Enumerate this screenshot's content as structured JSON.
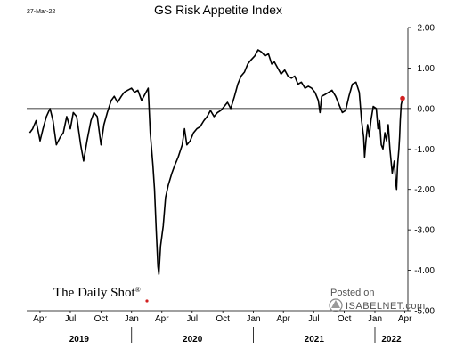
{
  "chart_data": {
    "type": "line",
    "title": "GS Risk Appetite Index",
    "date_stamp": "27-Mar-22",
    "ylim": [
      -5.0,
      2.0
    ],
    "y_ticks": [
      "2.00",
      "1.00",
      "0.00",
      "-1.00",
      "-2.00",
      "-3.00",
      "-4.00",
      "-5.00"
    ],
    "x_ticks": [
      "Apr",
      "Jul",
      "Oct",
      "Jan",
      "Apr",
      "Jul",
      "Oct",
      "Jan",
      "Apr",
      "Jul",
      "Oct",
      "Jan",
      "Apr"
    ],
    "years": [
      "2019",
      "2020",
      "2021",
      "2022"
    ],
    "grid": false,
    "reference_line": 0,
    "series": [
      {
        "color": "#000000",
        "points": [
          [
            "2019-03-01",
            -0.6
          ],
          [
            "2019-03-10",
            -0.5
          ],
          [
            "2019-03-20",
            -0.3
          ],
          [
            "2019-04-01",
            -0.8
          ],
          [
            "2019-04-10",
            -0.5
          ],
          [
            "2019-04-20",
            -0.2
          ],
          [
            "2019-05-01",
            0.0
          ],
          [
            "2019-05-10",
            -0.3
          ],
          [
            "2019-05-20",
            -0.9
          ],
          [
            "2019-06-01",
            -0.7
          ],
          [
            "2019-06-10",
            -0.6
          ],
          [
            "2019-06-20",
            -0.2
          ],
          [
            "2019-07-01",
            -0.5
          ],
          [
            "2019-07-10",
            -0.1
          ],
          [
            "2019-07-20",
            -0.2
          ],
          [
            "2019-08-01",
            -0.9
          ],
          [
            "2019-08-10",
            -1.3
          ],
          [
            "2019-08-20",
            -0.8
          ],
          [
            "2019-09-01",
            -0.3
          ],
          [
            "2019-09-10",
            -0.1
          ],
          [
            "2019-09-20",
            -0.2
          ],
          [
            "2019-10-01",
            -0.9
          ],
          [
            "2019-10-10",
            -0.4
          ],
          [
            "2019-10-20",
            -0.1
          ],
          [
            "2019-11-01",
            0.2
          ],
          [
            "2019-11-10",
            0.3
          ],
          [
            "2019-11-20",
            0.15
          ],
          [
            "2019-12-01",
            0.3
          ],
          [
            "2019-12-10",
            0.4
          ],
          [
            "2019-12-20",
            0.45
          ],
          [
            "2020-01-01",
            0.5
          ],
          [
            "2020-01-10",
            0.4
          ],
          [
            "2020-01-20",
            0.45
          ],
          [
            "2020-01-31",
            0.2
          ],
          [
            "2020-02-10",
            0.35
          ],
          [
            "2020-02-20",
            0.5
          ],
          [
            "2020-02-26",
            -0.6
          ],
          [
            "2020-03-05",
            -1.4
          ],
          [
            "2020-03-10",
            -2.0
          ],
          [
            "2020-03-15",
            -3.0
          ],
          [
            "2020-03-20",
            -3.9
          ],
          [
            "2020-03-23",
            -4.1
          ],
          [
            "2020-03-28",
            -3.4
          ],
          [
            "2020-04-05",
            -2.9
          ],
          [
            "2020-04-12",
            -2.2
          ],
          [
            "2020-04-20",
            -1.9
          ],
          [
            "2020-05-01",
            -1.6
          ],
          [
            "2020-05-10",
            -1.4
          ],
          [
            "2020-05-20",
            -1.2
          ],
          [
            "2020-06-01",
            -0.9
          ],
          [
            "2020-06-08",
            -0.5
          ],
          [
            "2020-06-15",
            -0.9
          ],
          [
            "2020-06-25",
            -0.8
          ],
          [
            "2020-07-05",
            -0.6
          ],
          [
            "2020-07-15",
            -0.5
          ],
          [
            "2020-07-25",
            -0.45
          ],
          [
            "2020-08-05",
            -0.3
          ],
          [
            "2020-08-15",
            -0.2
          ],
          [
            "2020-08-25",
            -0.05
          ],
          [
            "2020-09-05",
            -0.2
          ],
          [
            "2020-09-15",
            -0.1
          ],
          [
            "2020-09-25",
            -0.05
          ],
          [
            "2020-10-05",
            0.05
          ],
          [
            "2020-10-15",
            0.15
          ],
          [
            "2020-10-25",
            0.0
          ],
          [
            "2020-11-05",
            0.3
          ],
          [
            "2020-11-15",
            0.6
          ],
          [
            "2020-11-25",
            0.8
          ],
          [
            "2020-12-05",
            0.9
          ],
          [
            "2020-12-15",
            1.1
          ],
          [
            "2020-12-25",
            1.2
          ],
          [
            "2021-01-05",
            1.3
          ],
          [
            "2021-01-15",
            1.45
          ],
          [
            "2021-01-25",
            1.4
          ],
          [
            "2021-02-05",
            1.3
          ],
          [
            "2021-02-15",
            1.35
          ],
          [
            "2021-02-25",
            1.1
          ],
          [
            "2021-03-05",
            1.15
          ],
          [
            "2021-03-15",
            1.0
          ],
          [
            "2021-03-25",
            0.85
          ],
          [
            "2021-04-05",
            0.95
          ],
          [
            "2021-04-15",
            0.8
          ],
          [
            "2021-04-25",
            0.75
          ],
          [
            "2021-05-05",
            0.8
          ],
          [
            "2021-05-15",
            0.6
          ],
          [
            "2021-05-25",
            0.65
          ],
          [
            "2021-06-05",
            0.5
          ],
          [
            "2021-06-15",
            0.55
          ],
          [
            "2021-06-25",
            0.5
          ],
          [
            "2021-07-05",
            0.4
          ],
          [
            "2021-07-15",
            0.2
          ],
          [
            "2021-07-20",
            -0.1
          ],
          [
            "2021-07-25",
            0.3
          ],
          [
            "2021-08-05",
            0.35
          ],
          [
            "2021-08-15",
            0.4
          ],
          [
            "2021-08-25",
            0.45
          ],
          [
            "2021-09-05",
            0.3
          ],
          [
            "2021-09-15",
            0.1
          ],
          [
            "2021-09-25",
            -0.1
          ],
          [
            "2021-10-05",
            -0.05
          ],
          [
            "2021-10-15",
            0.3
          ],
          [
            "2021-10-25",
            0.6
          ],
          [
            "2021-11-05",
            0.65
          ],
          [
            "2021-11-15",
            0.4
          ],
          [
            "2021-11-22",
            -0.3
          ],
          [
            "2021-11-28",
            -0.7
          ],
          [
            "2021-12-01",
            -1.2
          ],
          [
            "2021-12-05",
            -0.8
          ],
          [
            "2021-12-10",
            -0.4
          ],
          [
            "2021-12-15",
            -0.7
          ],
          [
            "2021-12-20",
            -0.3
          ],
          [
            "2021-12-27",
            0.05
          ],
          [
            "2022-01-05",
            0.0
          ],
          [
            "2022-01-10",
            -0.5
          ],
          [
            "2022-01-15",
            -0.3
          ],
          [
            "2022-01-20",
            -0.9
          ],
          [
            "2022-01-25",
            -1.0
          ],
          [
            "2022-01-31",
            -0.6
          ],
          [
            "2022-02-05",
            -0.8
          ],
          [
            "2022-02-10",
            -0.4
          ],
          [
            "2022-02-15",
            -1.0
          ],
          [
            "2022-02-22",
            -1.6
          ],
          [
            "2022-02-28",
            -1.3
          ],
          [
            "2022-03-04",
            -1.8
          ],
          [
            "2022-03-07",
            -2.0
          ],
          [
            "2022-03-10",
            -1.4
          ],
          [
            "2022-03-14",
            -1.0
          ],
          [
            "2022-03-16",
            -0.7
          ],
          [
            "2022-03-18",
            -0.3
          ],
          [
            "2022-03-21",
            0.1
          ],
          [
            "2022-03-24",
            0.2
          ],
          [
            "2022-03-25",
            0.25
          ]
        ]
      }
    ],
    "last_point_marker_color": "#d22020"
  },
  "branding": {
    "daily_shot": "The Daily Shot",
    "registered_mark": "®",
    "posted_on": "Posted on",
    "isabelnet": "ISABELNET.com"
  }
}
